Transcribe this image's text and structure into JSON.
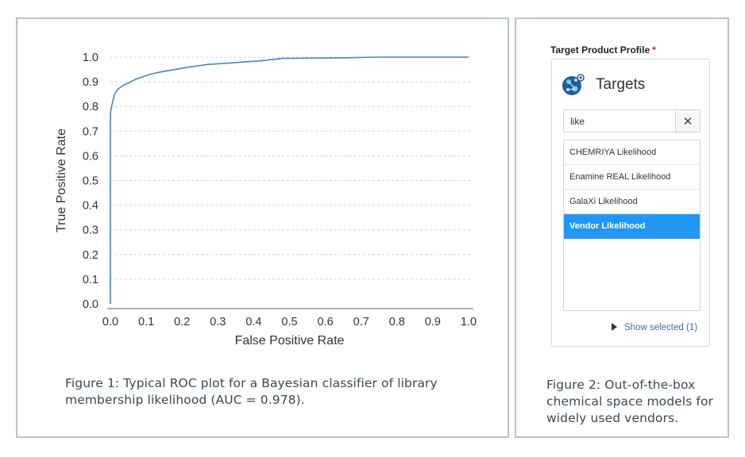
{
  "chart_data": {
    "type": "line",
    "title": "",
    "xlabel": "False Positive Rate",
    "ylabel": "True Positive Rate",
    "xlim": [
      0,
      1
    ],
    "ylim": [
      0,
      1
    ],
    "x_ticks": [
      "0.0",
      "0.1",
      "0.2",
      "0.3",
      "0.4",
      "0.5",
      "0.6",
      "0.7",
      "0.8",
      "0.9",
      "1.0"
    ],
    "y_ticks": [
      "0.0",
      "0.1",
      "0.2",
      "0.3",
      "0.4",
      "0.5",
      "0.6",
      "0.7",
      "0.8",
      "0.9",
      "1.0"
    ],
    "grid": "horizontal dashed",
    "series": [
      {
        "name": "",
        "color": "#4a86b8",
        "points": [
          [
            0.0,
            0.0
          ],
          [
            0.0,
            0.77
          ],
          [
            0.002,
            0.79
          ],
          [
            0.005,
            0.81
          ],
          [
            0.008,
            0.83
          ],
          [
            0.012,
            0.85
          ],
          [
            0.018,
            0.865
          ],
          [
            0.025,
            0.875
          ],
          [
            0.035,
            0.885
          ],
          [
            0.05,
            0.895
          ],
          [
            0.07,
            0.91
          ],
          [
            0.09,
            0.92
          ],
          [
            0.11,
            0.93
          ],
          [
            0.14,
            0.94
          ],
          [
            0.18,
            0.95
          ],
          [
            0.22,
            0.96
          ],
          [
            0.27,
            0.97
          ],
          [
            0.32,
            0.975
          ],
          [
            0.37,
            0.98
          ],
          [
            0.42,
            0.985
          ],
          [
            0.48,
            0.995
          ],
          [
            0.55,
            0.996
          ],
          [
            0.65,
            0.997
          ],
          [
            0.74,
            1.0
          ],
          [
            1.0,
            1.0
          ]
        ]
      }
    ]
  },
  "figure1": {
    "caption": "Figure 1: Typical ROC plot for a Bayesian classifier of library membership likelihood (AUC = 0.978)."
  },
  "figure2": {
    "caption": "Figure 2: Out-of-the-box chemical space models for widely used vendors.",
    "field_label": "Target Product Profile",
    "required_mark": "*",
    "card_title": "Targets",
    "search_value": "like",
    "clear_symbol": "✕",
    "items": [
      {
        "label": "CHEMRIYA Likelihood",
        "selected": false
      },
      {
        "label": "Enamine REAL Likelihood",
        "selected": false
      },
      {
        "label": "GalaXi Likelihood",
        "selected": false
      },
      {
        "label": "Vendor Likelihood",
        "selected": true
      }
    ],
    "show_selected": "Show selected (1)",
    "logo_icon": "molecule-globe-icon",
    "accent_color": "#2196f3"
  }
}
